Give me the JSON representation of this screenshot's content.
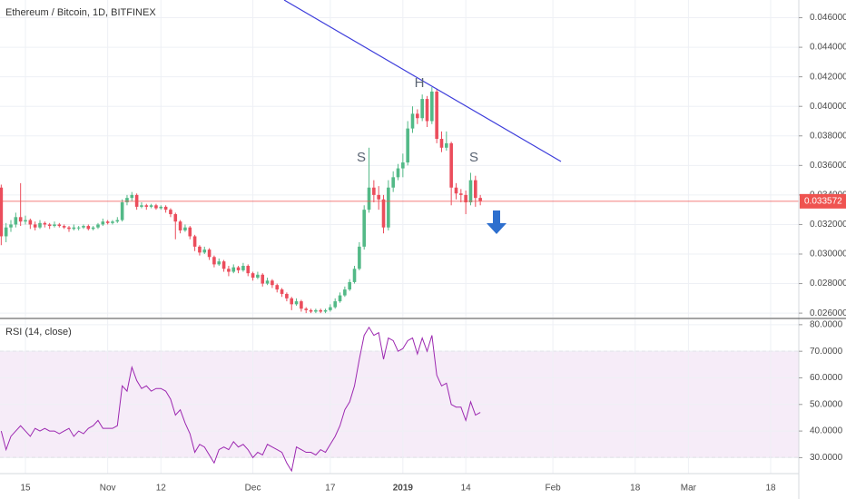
{
  "chart_data": [
    {
      "type": "candlestick",
      "title": "Ethereum / Bitcoin, 1D, BITFINEX",
      "x": [
        0,
        1,
        2,
        3,
        4,
        5,
        6,
        7,
        8,
        9,
        10,
        11,
        12,
        13,
        14,
        15,
        16,
        17,
        18,
        19,
        20,
        21,
        22,
        23,
        24,
        25,
        26,
        27,
        28,
        29,
        30,
        31,
        32,
        33,
        34,
        35,
        36,
        37,
        38,
        39,
        40,
        41,
        42,
        43,
        44,
        45,
        46,
        47,
        48,
        49,
        50,
        51,
        52,
        53,
        54,
        55,
        56,
        57,
        58,
        59,
        60,
        61,
        62,
        63,
        64,
        65,
        66,
        67,
        68,
        69,
        70,
        71,
        72,
        73,
        74,
        75,
        76,
        77,
        78,
        79,
        80,
        81,
        82,
        83,
        84,
        85,
        86,
        87,
        88,
        89,
        90,
        91,
        92,
        93,
        94,
        95,
        96,
        97,
        98,
        99
      ],
      "open": [
        0.0345,
        0.0312,
        0.0318,
        0.032,
        0.0325,
        0.0322,
        0.0323,
        0.032,
        0.0318,
        0.0321,
        0.032,
        0.0319,
        0.032,
        0.0319,
        0.0318,
        0.0317,
        0.0318,
        0.0318,
        0.0319,
        0.0317,
        0.0318,
        0.032,
        0.0322,
        0.0321,
        0.0322,
        0.0323,
        0.0335,
        0.0338,
        0.034,
        0.0332,
        0.0333,
        0.0332,
        0.0333,
        0.0331,
        0.0332,
        0.033,
        0.0327,
        0.0322,
        0.0316,
        0.0318,
        0.0312,
        0.0305,
        0.0301,
        0.0303,
        0.0298,
        0.0293,
        0.0295,
        0.029,
        0.0288,
        0.0291,
        0.0289,
        0.0292,
        0.0287,
        0.0284,
        0.0286,
        0.028,
        0.0282,
        0.0279,
        0.0276,
        0.0273,
        0.027,
        0.0266,
        0.0268,
        0.0263,
        0.0262,
        0.0261,
        0.0262,
        0.0261,
        0.0262,
        0.0264,
        0.0268,
        0.0272,
        0.0276,
        0.0281,
        0.029,
        0.0305,
        0.033,
        0.0345,
        0.034,
        0.0337,
        0.0318,
        0.0345,
        0.0352,
        0.0358,
        0.0362,
        0.0385,
        0.0395,
        0.0392,
        0.0405,
        0.039,
        0.041,
        0.0378,
        0.0372,
        0.0375,
        0.0345,
        0.0341,
        0.034,
        0.0335,
        0.035,
        0.0338
      ],
      "high": [
        0.0347,
        0.0321,
        0.0323,
        0.0328,
        0.0348,
        0.0326,
        0.0324,
        0.0322,
        0.0323,
        0.0322,
        0.0321,
        0.0322,
        0.0321,
        0.032,
        0.0319,
        0.032,
        0.0319,
        0.032,
        0.032,
        0.0319,
        0.0321,
        0.0324,
        0.0323,
        0.0323,
        0.0325,
        0.0337,
        0.034,
        0.0342,
        0.0341,
        0.0335,
        0.0334,
        0.0334,
        0.0334,
        0.0333,
        0.0333,
        0.0331,
        0.0328,
        0.0323,
        0.032,
        0.0319,
        0.0313,
        0.0306,
        0.0305,
        0.0304,
        0.0299,
        0.0297,
        0.0296,
        0.0292,
        0.0293,
        0.0292,
        0.0294,
        0.0293,
        0.0288,
        0.0288,
        0.0287,
        0.0284,
        0.0283,
        0.028,
        0.0277,
        0.0274,
        0.0271,
        0.027,
        0.0269,
        0.0264,
        0.0263,
        0.0263,
        0.0263,
        0.0263,
        0.0266,
        0.027,
        0.0274,
        0.0278,
        0.0283,
        0.0292,
        0.0308,
        0.0333,
        0.0372,
        0.035,
        0.0346,
        0.034,
        0.035,
        0.0356,
        0.0361,
        0.0368,
        0.039,
        0.04,
        0.0398,
        0.0408,
        0.0407,
        0.0413,
        0.0412,
        0.0383,
        0.0383,
        0.0376,
        0.0348,
        0.0344,
        0.0343,
        0.0355,
        0.0353,
        0.034
      ],
      "low": [
        0.0306,
        0.0308,
        0.0315,
        0.0318,
        0.0319,
        0.032,
        0.0317,
        0.0316,
        0.0317,
        0.0318,
        0.0317,
        0.0318,
        0.0318,
        0.0317,
        0.0315,
        0.0316,
        0.0316,
        0.0317,
        0.0316,
        0.0316,
        0.0317,
        0.0319,
        0.032,
        0.032,
        0.0321,
        0.0322,
        0.0333,
        0.0336,
        0.033,
        0.0331,
        0.033,
        0.0331,
        0.033,
        0.033,
        0.0328,
        0.0325,
        0.031,
        0.0314,
        0.0315,
        0.031,
        0.0302,
        0.0299,
        0.03,
        0.0296,
        0.0291,
        0.0292,
        0.0288,
        0.0285,
        0.0287,
        0.0287,
        0.0288,
        0.0285,
        0.0282,
        0.0283,
        0.0278,
        0.0279,
        0.0277,
        0.0274,
        0.0271,
        0.0268,
        0.0262,
        0.0265,
        0.0261,
        0.026,
        0.026,
        0.026,
        0.026,
        0.026,
        0.0261,
        0.0263,
        0.0267,
        0.0271,
        0.0275,
        0.028,
        0.0289,
        0.0303,
        0.0328,
        0.0335,
        0.033,
        0.0314,
        0.0316,
        0.0342,
        0.035,
        0.0352,
        0.036,
        0.0382,
        0.0388,
        0.039,
        0.0386,
        0.0388,
        0.0375,
        0.0369,
        0.037,
        0.0333,
        0.0337,
        0.0335,
        0.0327,
        0.0333,
        0.0332,
        0.0333
      ],
      "close": [
        0.0312,
        0.0318,
        0.032,
        0.0325,
        0.0322,
        0.0323,
        0.032,
        0.0318,
        0.0321,
        0.032,
        0.0319,
        0.032,
        0.0319,
        0.0318,
        0.0317,
        0.0318,
        0.0318,
        0.0319,
        0.0317,
        0.0318,
        0.032,
        0.0322,
        0.0321,
        0.0322,
        0.0323,
        0.0335,
        0.0338,
        0.034,
        0.0332,
        0.0333,
        0.0332,
        0.0333,
        0.0331,
        0.0332,
        0.033,
        0.0327,
        0.0322,
        0.0316,
        0.0318,
        0.0312,
        0.0305,
        0.0301,
        0.0303,
        0.0298,
        0.0293,
        0.0295,
        0.029,
        0.0288,
        0.0291,
        0.0289,
        0.0292,
        0.0287,
        0.0284,
        0.0286,
        0.028,
        0.0282,
        0.0279,
        0.0276,
        0.0273,
        0.027,
        0.0266,
        0.0268,
        0.0263,
        0.0262,
        0.0261,
        0.0262,
        0.0261,
        0.0262,
        0.0264,
        0.0268,
        0.0272,
        0.0276,
        0.0281,
        0.029,
        0.0305,
        0.033,
        0.0345,
        0.034,
        0.0337,
        0.0318,
        0.0345,
        0.0352,
        0.0358,
        0.0362,
        0.0385,
        0.0395,
        0.0392,
        0.0405,
        0.039,
        0.041,
        0.0378,
        0.0372,
        0.0375,
        0.0345,
        0.0341,
        0.034,
        0.0335,
        0.035,
        0.0338,
        0.0336
      ],
      "up_color": "#53b987",
      "down_color": "#eb4d5c",
      "last_price": 0.033572,
      "last_price_color": "#ef5350",
      "annotations": [
        "S",
        "H",
        "S"
      ],
      "xlim": [
        0,
        165
      ],
      "xticks": [
        {
          "value": 5,
          "label": "15"
        },
        {
          "value": 22,
          "label": "Nov"
        },
        {
          "value": 33,
          "label": "12"
        },
        {
          "value": 52,
          "label": "Dec"
        },
        {
          "value": 68,
          "label": "17"
        },
        {
          "value": 83,
          "label": "2019"
        },
        {
          "value": 96,
          "label": "14"
        },
        {
          "value": 114,
          "label": "Feb"
        },
        {
          "value": 131,
          "label": "18"
        },
        {
          "value": 142,
          "label": "Mar"
        },
        {
          "value": 159,
          "label": "18"
        }
      ],
      "ylim": [
        0.0257,
        0.0472
      ],
      "yticks": [
        {
          "value": 0.026,
          "label": "0.026000"
        },
        {
          "value": 0.028,
          "label": "0.028000"
        },
        {
          "value": 0.03,
          "label": "0.030000"
        },
        {
          "value": 0.032,
          "label": "0.032000"
        },
        {
          "value": 0.034,
          "label": "0.034000"
        },
        {
          "value": 0.036,
          "label": "0.036000"
        },
        {
          "value": 0.038,
          "label": "0.038000"
        },
        {
          "value": 0.04,
          "label": "0.040000"
        },
        {
          "value": 0.042,
          "label": "0.042000"
        },
        {
          "value": 0.044,
          "label": "0.044000"
        },
        {
          "value": 0.046,
          "label": "0.046000"
        }
      ],
      "grid": true
    },
    {
      "type": "line",
      "title": "RSI (14, close)",
      "color": "#9c27b0",
      "x": [
        0,
        1,
        2,
        3,
        4,
        5,
        6,
        7,
        8,
        9,
        10,
        11,
        12,
        13,
        14,
        15,
        16,
        17,
        18,
        19,
        20,
        21,
        22,
        23,
        24,
        25,
        26,
        27,
        28,
        29,
        30,
        31,
        32,
        33,
        34,
        35,
        36,
        37,
        38,
        39,
        40,
        41,
        42,
        43,
        44,
        45,
        46,
        47,
        48,
        49,
        50,
        51,
        52,
        53,
        54,
        55,
        56,
        57,
        58,
        59,
        60,
        61,
        62,
        63,
        64,
        65,
        66,
        67,
        68,
        69,
        70,
        71,
        72,
        73,
        74,
        75,
        76,
        77,
        78,
        79,
        80,
        81,
        82,
        83,
        84,
        85,
        86,
        87,
        88,
        89,
        90,
        91,
        92,
        93,
        94,
        95,
        96,
        97,
        98,
        99
      ],
      "values": [
        40,
        33,
        38,
        40,
        42,
        40,
        38,
        41,
        40,
        41,
        40,
        40,
        39,
        40,
        41,
        38,
        40,
        39,
        41,
        42,
        44,
        41,
        41,
        41,
        42,
        57,
        55,
        64,
        59,
        56,
        57,
        55,
        56,
        56,
        55,
        52,
        46,
        48,
        43,
        39,
        32,
        35,
        34,
        31,
        28,
        33,
        34,
        33,
        36,
        34,
        35,
        33,
        30,
        32,
        31,
        35,
        34,
        33,
        32,
        28,
        25,
        34,
        33,
        32,
        32,
        31,
        33,
        32,
        35,
        38,
        42,
        48,
        51,
        57,
        67,
        76,
        79,
        76,
        77,
        67,
        75,
        74,
        70,
        71,
        74,
        75,
        69,
        75,
        70,
        76,
        61,
        57,
        58,
        50,
        49,
        49,
        44,
        51,
        46,
        47
      ],
      "band": [
        30,
        70
      ],
      "band_color": "#9c27b0",
      "xlim": [
        0,
        165
      ],
      "ylim": [
        24,
        82
      ],
      "yticks": [
        {
          "value": 30,
          "label": "30.0000"
        },
        {
          "value": 40,
          "label": "40.0000"
        },
        {
          "value": 50,
          "label": "50.0000"
        },
        {
          "value": 60,
          "label": "60.0000"
        },
        {
          "value": 70,
          "label": "70.0000"
        },
        {
          "value": 80,
          "label": "80.0000"
        }
      ],
      "grid": true
    }
  ]
}
